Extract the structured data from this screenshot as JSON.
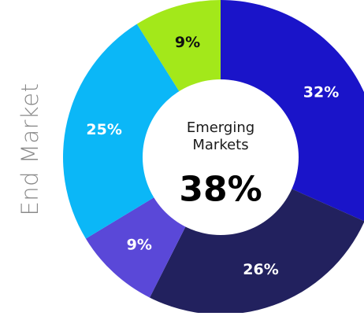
{
  "chart_data": {
    "type": "pie",
    "style": "donut",
    "title": "",
    "side_label": "End Market",
    "center": {
      "caption": "Emerging\nMarkets",
      "value": "38%"
    },
    "slices": [
      {
        "label": "32%",
        "value": 32,
        "color": "#1a14c9",
        "text_color": "#ffffff"
      },
      {
        "label": "26%",
        "value": 26,
        "color": "#22215e",
        "text_color": "#ffffff"
      },
      {
        "label": "9%",
        "value": 9,
        "color": "#5a48d8",
        "text_color": "#ffffff"
      },
      {
        "label": "25%",
        "value": 25,
        "color": "#0bb7f7",
        "text_color": "#ffffff"
      },
      {
        "label": "9%",
        "value": 9,
        "color": "#a3e81a",
        "text_color": "#111111"
      }
    ],
    "start_angle_deg": 0,
    "direction": "clockwise",
    "legend": "none"
  }
}
